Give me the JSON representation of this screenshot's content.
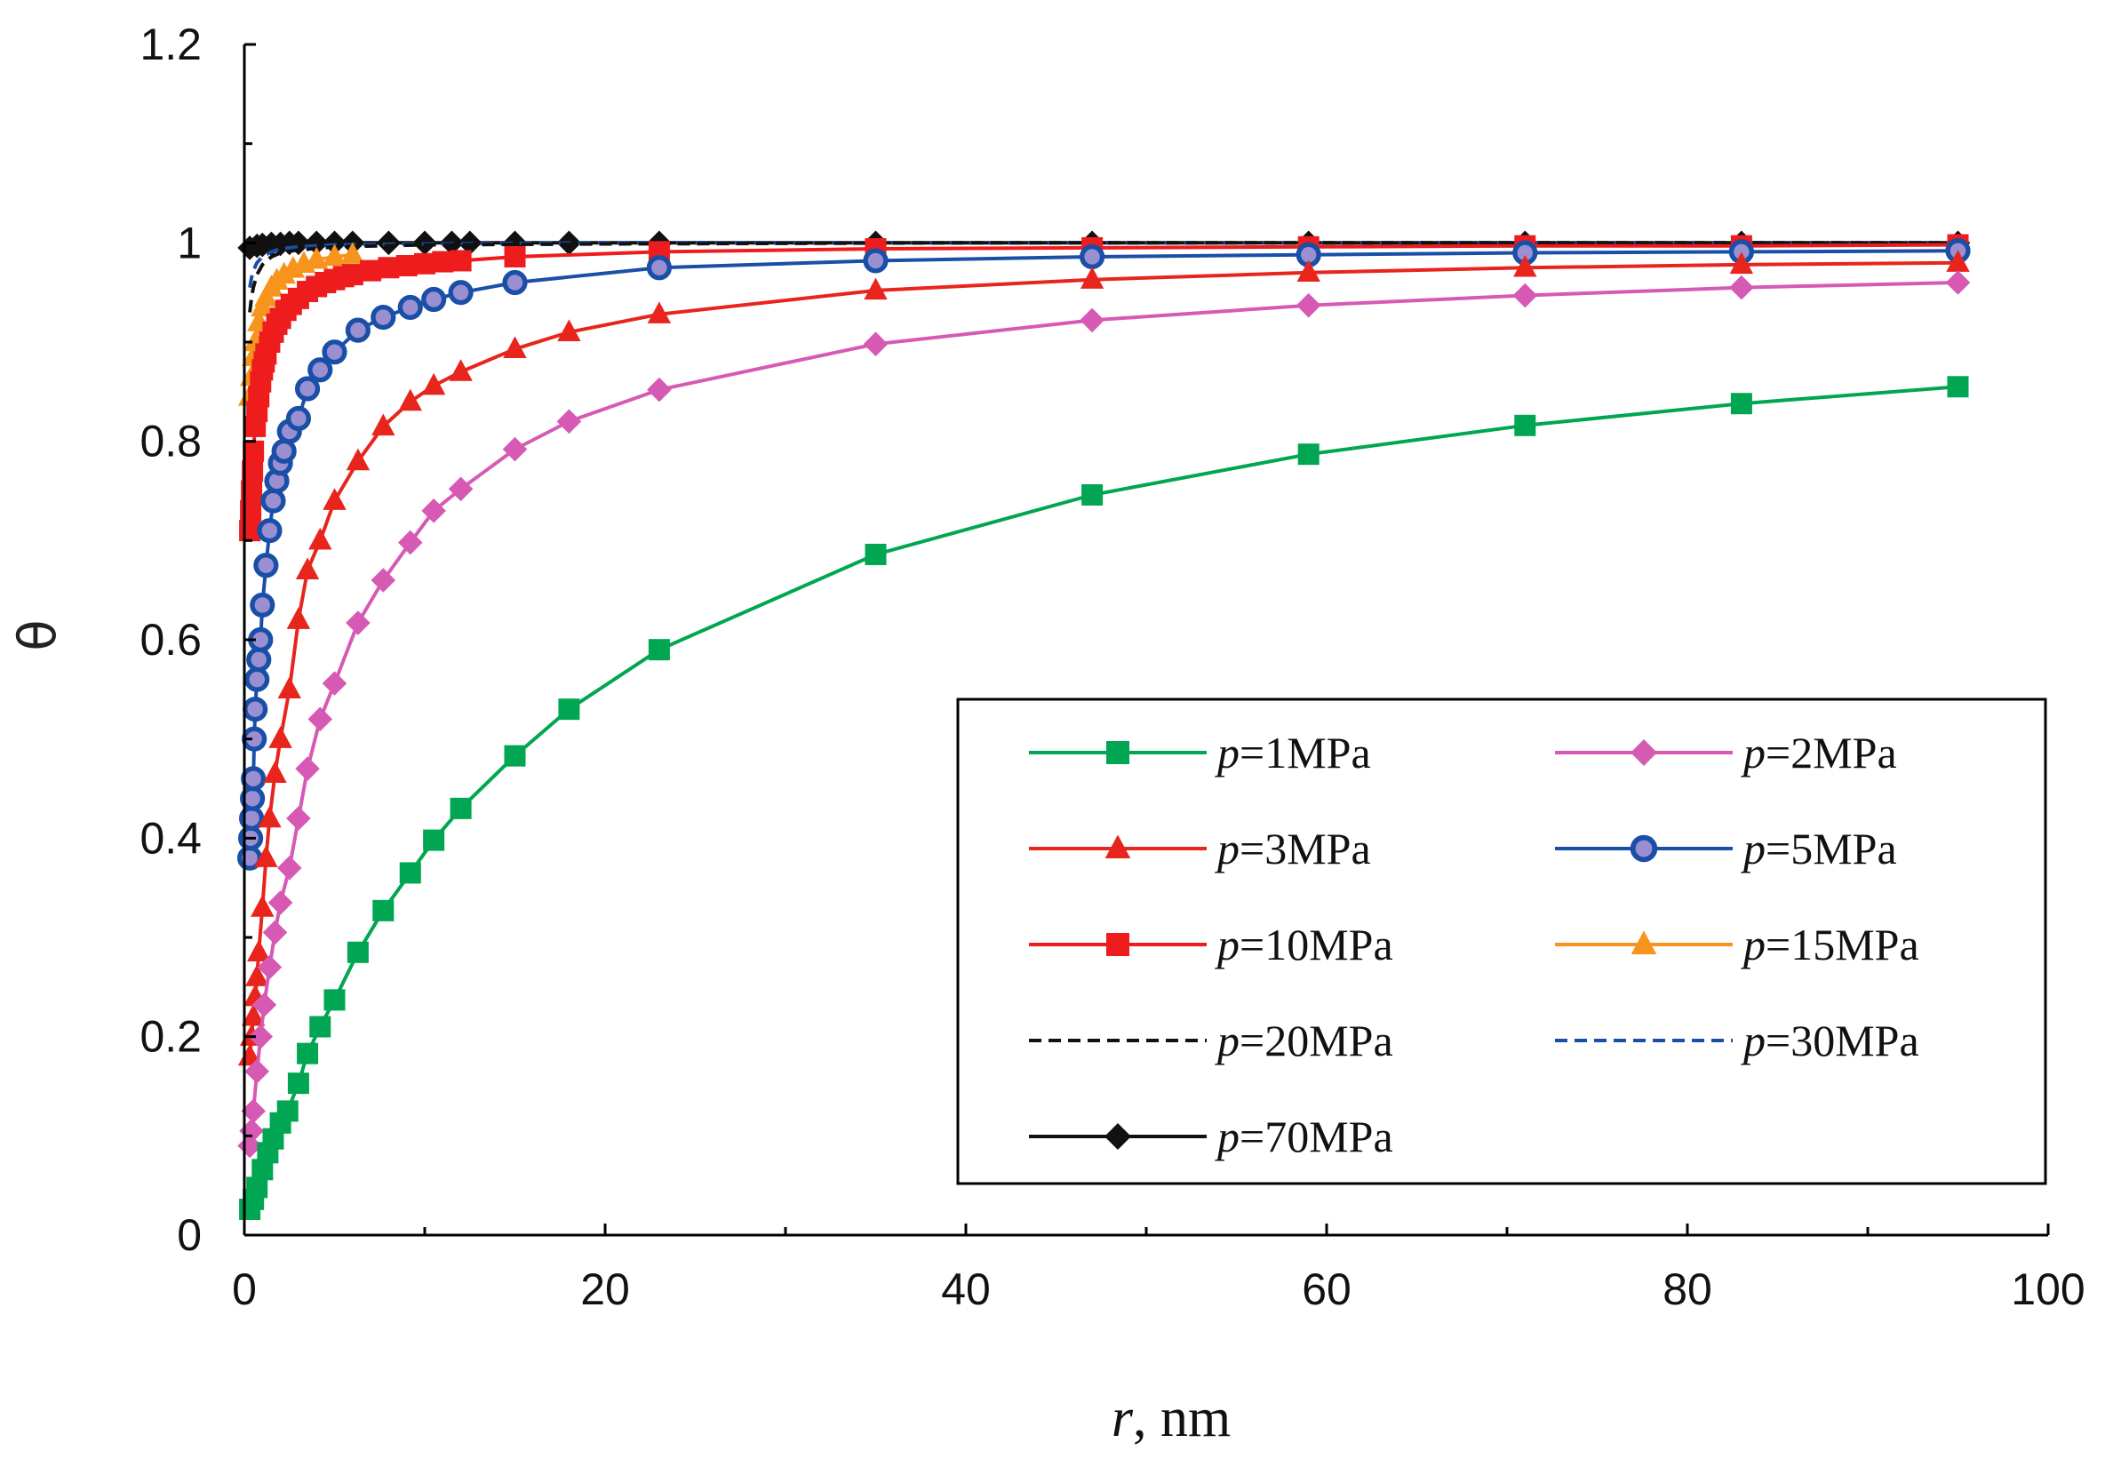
{
  "chart_data": {
    "type": "line",
    "title": "",
    "xlabel_var": "r",
    "xlabel_unit": ", nm",
    "ylabel": "θ",
    "xlim": [
      0,
      100
    ],
    "ylim": [
      0,
      1.2
    ],
    "x_major_ticks": [
      0,
      20,
      40,
      60,
      80,
      100
    ],
    "x_tick_labels": [
      "0",
      "20",
      "40",
      "60",
      "80",
      "100"
    ],
    "x_minor_ticks": [
      10,
      30,
      50,
      70,
      90
    ],
    "y_major_ticks": [
      0,
      0.2,
      0.4,
      0.6,
      0.8,
      1,
      1.2
    ],
    "y_tick_labels": [
      "0",
      "0.2",
      "0.4",
      "0.6",
      "0.8",
      "1",
      "1.2"
    ],
    "y_minor_ticks": [
      0.1,
      0.3,
      0.5,
      0.7,
      0.9,
      1.1
    ],
    "grid": false,
    "legend_position": "lower-right",
    "series": [
      {
        "name": "p=1MPa",
        "legend_var": "p",
        "legend_value": "=1MPa",
        "color": "#00a651",
        "marker": "square",
        "dash": false,
        "x": [
          0.3,
          0.5,
          0.7,
          1.0,
          1.3,
          1.6,
          2.0,
          2.4,
          3.0,
          3.5,
          4.2,
          5.0,
          6.3,
          7.7,
          9.2,
          10.5,
          12.0,
          15.0,
          18.0,
          23.0,
          35.0,
          47.0,
          59.0,
          71.0,
          83.0,
          95.0
        ],
        "y": [
          0.026,
          0.036,
          0.048,
          0.066,
          0.083,
          0.097,
          0.113,
          0.125,
          0.153,
          0.183,
          0.21,
          0.237,
          0.285,
          0.327,
          0.365,
          0.398,
          0.43,
          0.483,
          0.53,
          0.59,
          0.686,
          0.746,
          0.787,
          0.816,
          0.838,
          0.855
        ]
      },
      {
        "name": "p=2MPa",
        "legend_var": "p",
        "legend_value": "=2MPa",
        "color": "#d65ab4",
        "marker": "diamond",
        "dash": false,
        "x": [
          0.3,
          0.4,
          0.5,
          0.7,
          0.9,
          1.1,
          1.4,
          1.7,
          2.0,
          2.5,
          3.0,
          3.5,
          4.2,
          5.0,
          6.3,
          7.7,
          9.2,
          10.5,
          12.0,
          15.0,
          18.0,
          23.0,
          35.0,
          47.0,
          59.0,
          71.0,
          83.0,
          95.0
        ],
        "y": [
          0.09,
          0.105,
          0.125,
          0.165,
          0.2,
          0.232,
          0.27,
          0.305,
          0.335,
          0.37,
          0.42,
          0.47,
          0.52,
          0.556,
          0.617,
          0.66,
          0.698,
          0.73,
          0.752,
          0.792,
          0.82,
          0.852,
          0.898,
          0.922,
          0.937,
          0.947,
          0.955,
          0.96
        ]
      },
      {
        "name": "p=3MPa",
        "legend_var": "p",
        "legend_value": "=3MPa",
        "color": "#e8251c",
        "marker": "triangle",
        "dash": false,
        "x": [
          0.3,
          0.4,
          0.5,
          0.6,
          0.7,
          0.8,
          1.0,
          1.2,
          1.4,
          1.7,
          2.0,
          2.5,
          3.0,
          3.5,
          4.2,
          5.0,
          6.3,
          7.7,
          9.2,
          10.5,
          12.0,
          15.0,
          18.0,
          23.0,
          35.0,
          47.0,
          59.0,
          71.0,
          83.0,
          95.0
        ],
        "y": [
          0.18,
          0.2,
          0.22,
          0.24,
          0.26,
          0.285,
          0.33,
          0.38,
          0.42,
          0.465,
          0.5,
          0.55,
          0.62,
          0.67,
          0.7,
          0.74,
          0.78,
          0.815,
          0.84,
          0.856,
          0.87,
          0.893,
          0.91,
          0.928,
          0.952,
          0.963,
          0.97,
          0.975,
          0.978,
          0.98
        ]
      },
      {
        "name": "p=5MPa",
        "legend_var": "p",
        "legend_value": "=5MPa",
        "color": "#1a4fa8",
        "marker": "circle",
        "dash": false,
        "x": [
          0.3,
          0.35,
          0.4,
          0.45,
          0.5,
          0.55,
          0.6,
          0.7,
          0.8,
          0.9,
          1.0,
          1.2,
          1.4,
          1.6,
          1.8,
          2.0,
          2.2,
          2.5,
          3.0,
          3.5,
          4.2,
          5.0,
          6.3,
          7.7,
          9.2,
          10.5,
          12.0,
          15.0,
          23.0,
          35.0,
          47.0,
          59.0,
          71.0,
          83.0,
          95.0
        ],
        "y": [
          0.38,
          0.4,
          0.42,
          0.44,
          0.46,
          0.5,
          0.53,
          0.56,
          0.58,
          0.6,
          0.635,
          0.675,
          0.71,
          0.74,
          0.76,
          0.778,
          0.79,
          0.81,
          0.823,
          0.853,
          0.872,
          0.89,
          0.912,
          0.925,
          0.935,
          0.943,
          0.95,
          0.96,
          0.975,
          0.982,
          0.986,
          0.988,
          0.99,
          0.991,
          0.992
        ]
      },
      {
        "name": "p=10MPa",
        "legend_var": "p",
        "legend_value": "=10MPa",
        "color": "#ee1c1c",
        "marker": "square",
        "dash": false,
        "x": [
          0.3,
          0.35,
          0.4,
          0.45,
          0.5,
          0.6,
          0.7,
          0.8,
          0.9,
          1.0,
          1.1,
          1.2,
          1.4,
          1.6,
          1.8,
          2.0,
          2.3,
          2.6,
          3.0,
          3.5,
          4.0,
          4.5,
          5.0,
          5.5,
          6.0,
          7.0,
          8.0,
          9.0,
          10.0,
          11.0,
          12.0,
          15.0,
          23.0,
          35.0,
          47.0,
          59.0,
          71.0,
          83.0,
          95.0
        ],
        "y": [
          0.71,
          0.73,
          0.75,
          0.77,
          0.79,
          0.815,
          0.83,
          0.845,
          0.86,
          0.872,
          0.88,
          0.888,
          0.9,
          0.91,
          0.918,
          0.924,
          0.932,
          0.938,
          0.944,
          0.951,
          0.956,
          0.96,
          0.963,
          0.966,
          0.968,
          0.972,
          0.975,
          0.977,
          0.979,
          0.981,
          0.982,
          0.986,
          0.991,
          0.994,
          0.995,
          0.996,
          0.997,
          0.997,
          0.998
        ]
      },
      {
        "name": "p=15MPa",
        "legend_var": "p",
        "legend_value": "=15MPa",
        "color": "#f7941d",
        "marker": "triangle",
        "dash": false,
        "x": [
          0.3,
          0.4,
          0.5,
          0.6,
          0.8,
          1.0,
          1.2,
          1.5,
          1.8,
          2.2,
          2.7,
          3.3,
          4.0,
          5.0,
          6.0
        ],
        "y": [
          0.845,
          0.865,
          0.885,
          0.9,
          0.92,
          0.935,
          0.945,
          0.955,
          0.962,
          0.968,
          0.974,
          0.979,
          0.983,
          0.986,
          0.988
        ]
      },
      {
        "name": "p=20MPa",
        "legend_var": "p",
        "legend_value": "=20MPa",
        "color": "#111111",
        "marker": "none",
        "dash": true,
        "x": [
          0.3,
          0.4,
          0.5,
          0.7,
          1.0,
          1.5,
          2.0,
          3.0,
          5.0,
          10.0,
          20.0,
          40.0,
          70.0,
          95.0
        ],
        "y": [
          0.93,
          0.945,
          0.955,
          0.968,
          0.978,
          0.986,
          0.99,
          0.993,
          0.996,
          0.998,
          0.999,
          1.0,
          1.0,
          1.0
        ]
      },
      {
        "name": "p=30MPa",
        "legend_var": "p",
        "legend_value": "=30MPa",
        "color": "#1a4fa8",
        "marker": "none",
        "dash": true,
        "x": [
          0.3,
          0.4,
          0.5,
          0.7,
          1.0,
          1.5,
          2.0,
          3.0,
          5.0,
          10.0,
          20.0,
          40.0,
          70.0,
          95.0
        ],
        "y": [
          0.955,
          0.965,
          0.972,
          0.98,
          0.986,
          0.991,
          0.994,
          0.996,
          0.998,
          0.999,
          1.0,
          1.0,
          1.0,
          1.0
        ]
      },
      {
        "name": "p=70MPa",
        "legend_var": "p",
        "legend_value": "=70MPa",
        "color": "#111111",
        "marker": "diamond",
        "dash": false,
        "x": [
          0.3,
          0.7,
          1.0,
          1.5,
          2.0,
          2.5,
          3.0,
          4.0,
          5.0,
          6.0,
          8.0,
          10.0,
          11.5,
          12.5,
          15.0,
          18.0,
          23.0,
          35.0,
          47.0,
          59.0,
          71.0,
          83.0,
          95.0
        ],
        "y": [
          0.995,
          0.997,
          0.998,
          0.999,
          0.999,
          1.0,
          1.0,
          1.0,
          1.0,
          1.0,
          1.0,
          1.0,
          1.0,
          1.0,
          1.0,
          1.0,
          1.0,
          1.0,
          1.0,
          1.0,
          1.0,
          1.0,
          1.0
        ]
      }
    ]
  }
}
